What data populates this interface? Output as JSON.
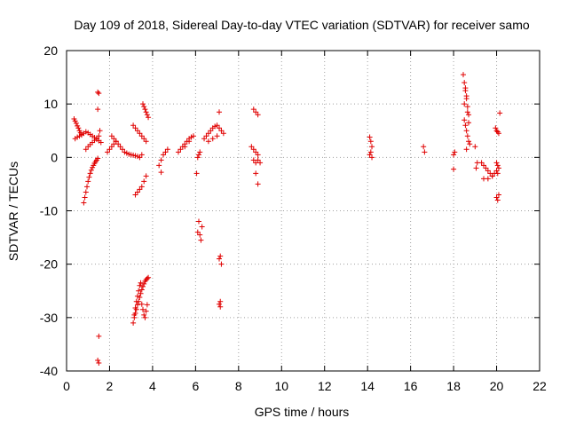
{
  "chart_data": {
    "type": "scatter",
    "title": "Day 109 of 2018, Sidereal Day-to-day VTEC variation (SDTVAR) for receiver samo",
    "xlabel": "GPS time / hours",
    "ylabel": "SDTVAR / TECUs",
    "xlim": [
      0,
      22
    ],
    "ylim": [
      -40,
      20
    ],
    "xticks": [
      0,
      2,
      4,
      6,
      8,
      10,
      12,
      14,
      16,
      18,
      20,
      22
    ],
    "yticks": [
      -40,
      -30,
      -20,
      -10,
      0,
      10,
      20
    ],
    "grid": true,
    "marker": "+",
    "color": "#e00000",
    "series": [
      {
        "name": "SDTVAR",
        "x": [
          0.35,
          0.4,
          0.45,
          0.5,
          0.55,
          0.6,
          0.65,
          0.7,
          0.4,
          0.5,
          0.6,
          0.7,
          0.8,
          0.9,
          1.0,
          1.1,
          1.2,
          1.3,
          1.4,
          1.5,
          1.6,
          0.8,
          0.85,
          0.9,
          0.95,
          1.0,
          1.05,
          1.1,
          1.15,
          1.2,
          1.25,
          1.3,
          1.35,
          1.4,
          1.45,
          0.9,
          1.0,
          1.1,
          1.2,
          1.3,
          1.4,
          1.5,
          1.45,
          1.5,
          1.45,
          1.55,
          1.5,
          1.45,
          1.5,
          1.9,
          2.0,
          2.1,
          2.2,
          2.3,
          2.1,
          2.2,
          2.3,
          2.4,
          2.5,
          2.6,
          2.7,
          2.8,
          2.9,
          3.0,
          3.1,
          3.2,
          3.3,
          3.4,
          3.5,
          3.1,
          3.2,
          3.3,
          3.4,
          3.5,
          3.6,
          3.7,
          3.1,
          3.15,
          3.2,
          3.25,
          3.3,
          3.35,
          3.4,
          3.45,
          3.5,
          3.55,
          3.6,
          3.65,
          3.7,
          3.75,
          3.8,
          3.15,
          3.2,
          3.25,
          3.3,
          3.35,
          3.4,
          3.45,
          3.5,
          3.55,
          3.6,
          3.65,
          3.7,
          3.75,
          3.55,
          3.6,
          3.65,
          3.7,
          3.75,
          3.8,
          3.2,
          3.3,
          3.4,
          3.5,
          3.6,
          3.7,
          4.3,
          4.4,
          4.5,
          4.6,
          4.7,
          4.4,
          5.2,
          5.3,
          5.4,
          5.5,
          5.6,
          5.7,
          5.8,
          5.9,
          5.5,
          5.7,
          6.05,
          6.1,
          6.15,
          6.2,
          6.25,
          6.3,
          6.15,
          6.2,
          6.1,
          6.4,
          6.5,
          6.6,
          6.7,
          6.8,
          6.9,
          7.0,
          7.1,
          7.2,
          7.3,
          6.6,
          6.8,
          7.0,
          7.1,
          7.1,
          7.15,
          7.2,
          7.15,
          7.1,
          7.15,
          8.6,
          8.7,
          8.8,
          8.9,
          8.7,
          8.8,
          8.9,
          9.0,
          8.7,
          8.8,
          8.9,
          8.8,
          8.9,
          14.1,
          14.15,
          14.2,
          14.15,
          14.1,
          14.2,
          16.6,
          16.65,
          18.0,
          18.05,
          18.0,
          18.45,
          18.5,
          18.55,
          18.6,
          18.65,
          18.7,
          18.5,
          18.55,
          18.6,
          18.65,
          18.7,
          18.75,
          18.5,
          18.6,
          18.7,
          18.55,
          18.65,
          18.6,
          19.0,
          19.1,
          19.05,
          19.3,
          19.4,
          19.5,
          19.6,
          19.7,
          19.8,
          19.4,
          19.6,
          19.8,
          19.9,
          19.95,
          20.0,
          20.05,
          20.1,
          20.0,
          20.05,
          20.1,
          20.0,
          20.05,
          20.1,
          20.0,
          20.05,
          20.15
        ],
        "y": [
          7.2,
          6.8,
          6.4,
          5.9,
          5.5,
          5.0,
          4.6,
          4.2,
          3.5,
          3.8,
          4.0,
          4.3,
          4.5,
          4.8,
          4.6,
          4.3,
          4.0,
          3.7,
          3.4,
          3.1,
          2.8,
          -8.5,
          -7.5,
          -6.5,
          -5.5,
          -4.5,
          -3.7,
          -3.0,
          -2.4,
          -1.9,
          -1.5,
          -1.1,
          -0.8,
          -0.5,
          -0.2,
          1.5,
          2.0,
          2.4,
          2.8,
          3.2,
          3.6,
          4.0,
          12.2,
          12.0,
          9.0,
          5.0,
          -33.5,
          -38.0,
          -38.5,
          1.0,
          1.5,
          2.0,
          2.5,
          3.0,
          4.0,
          3.5,
          3.0,
          2.5,
          2.0,
          1.5,
          1.0,
          0.8,
          0.6,
          0.5,
          0.4,
          0.3,
          0.2,
          0.0,
          0.5,
          6.0,
          5.5,
          5.0,
          4.5,
          4.0,
          3.5,
          3.0,
          -31.0,
          -30.0,
          -29.2,
          -28.5,
          -27.6,
          -27.0,
          -26.2,
          -25.5,
          -24.8,
          -24.2,
          -23.7,
          -23.2,
          -22.9,
          -22.7,
          -22.5,
          -29.5,
          -28.2,
          -27.0,
          -26.0,
          -25.0,
          -24.0,
          -23.5,
          -27.5,
          -28.5,
          -29.5,
          -30.0,
          -28.8,
          -27.6,
          10.0,
          9.5,
          9.0,
          8.5,
          8.0,
          7.5,
          -7.0,
          -6.5,
          -6.0,
          -5.5,
          -4.5,
          -3.5,
          -1.5,
          -0.5,
          0.5,
          1.0,
          1.5,
          -2.8,
          1.0,
          1.5,
          2.0,
          2.5,
          3.0,
          3.5,
          3.8,
          4.0,
          2.0,
          3.0,
          -3.0,
          -14.0,
          -12.0,
          -14.5,
          -15.5,
          -13.0,
          0.5,
          1.0,
          0.0,
          3.5,
          4.0,
          4.5,
          5.0,
          5.5,
          5.8,
          6.0,
          5.5,
          5.0,
          4.5,
          3.0,
          3.5,
          4.0,
          8.5,
          -19.0,
          -18.5,
          -20.0,
          -27.0,
          -27.5,
          -28.0,
          2.0,
          1.5,
          1.0,
          0.5,
          -0.5,
          -1.0,
          -0.5,
          -1.0,
          9.0,
          8.5,
          8.0,
          -3.0,
          -5.0,
          3.8,
          3.0,
          2.0,
          1.0,
          0.5,
          0.0,
          2.0,
          1.0,
          0.5,
          1.0,
          -2.2,
          15.5,
          14.0,
          12.5,
          11.0,
          9.5,
          8.0,
          7.0,
          6.0,
          5.0,
          4.0,
          3.0,
          2.5,
          10.0,
          11.5,
          6.5,
          13.0,
          8.5,
          1.5,
          2.0,
          -1.0,
          -2.0,
          -1.0,
          -1.5,
          -2.0,
          -2.5,
          -3.0,
          -3.5,
          -4.0,
          -4.0,
          -3.5,
          -3.0,
          5.5,
          5.0,
          4.8,
          4.5,
          -1.0,
          -1.5,
          -2.0,
          -2.5,
          -3.0,
          -7.0,
          -7.5,
          -8.0,
          8.3
        ]
      }
    ]
  }
}
